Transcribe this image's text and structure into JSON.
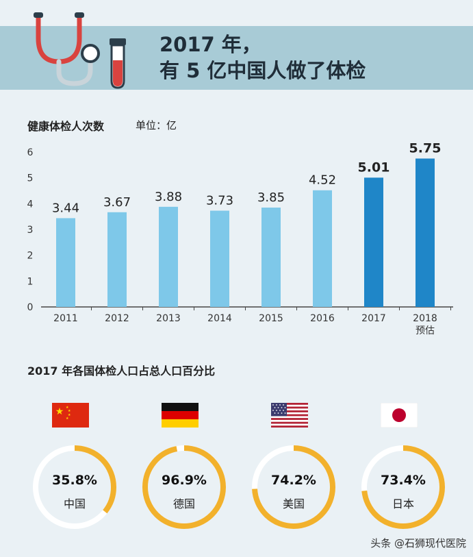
{
  "header": {
    "title_line1": "2017 年，",
    "title_line2": "有 5 亿中国人做了体检"
  },
  "chart_section": {
    "title": "健康体检人次数",
    "unit": "单位：亿"
  },
  "chart_data": {
    "type": "bar",
    "categories": [
      "2011",
      "2012",
      "2013",
      "2014",
      "2015",
      "2016",
      "2017",
      "2018"
    ],
    "category_sublabels": [
      "",
      "",
      "",
      "",
      "",
      "",
      "",
      "预估"
    ],
    "values": [
      3.44,
      3.67,
      3.88,
      3.73,
      3.85,
      4.52,
      5.01,
      5.75
    ],
    "value_labels": [
      "3.44",
      "3.67",
      "3.88",
      "3.73",
      "3.85",
      "4.52",
      "5.01",
      "5.75"
    ],
    "yticks": [
      "0",
      "1",
      "2",
      "3",
      "4",
      "5",
      "6"
    ],
    "ylim": [
      0,
      6
    ],
    "highlight": [
      false,
      false,
      false,
      false,
      false,
      false,
      true,
      true
    ],
    "colors": {
      "normal": "#7ec8e9",
      "highlight": "#1f86c8"
    },
    "xlabel": "",
    "ylabel": "",
    "grid": false
  },
  "countries_section": {
    "title": "2017 年各国体检人口占总人口百分比",
    "items": [
      {
        "flag": "china-flag-icon",
        "percent_label": "35.8%",
        "value": 0.358,
        "name": "中国"
      },
      {
        "flag": "germany-flag-icon",
        "percent_label": "96.9%",
        "value": 0.969,
        "name": "德国"
      },
      {
        "flag": "usa-flag-icon",
        "percent_label": "74.2%",
        "value": 0.742,
        "name": "美国"
      },
      {
        "flag": "japan-flag-icon",
        "percent_label": "73.4%",
        "value": 0.734,
        "name": "日本"
      }
    ],
    "ring_colors": {
      "fill": "#f2b12c",
      "track": "#ffffff"
    }
  },
  "watermark": "头条 @石狮现代医院"
}
